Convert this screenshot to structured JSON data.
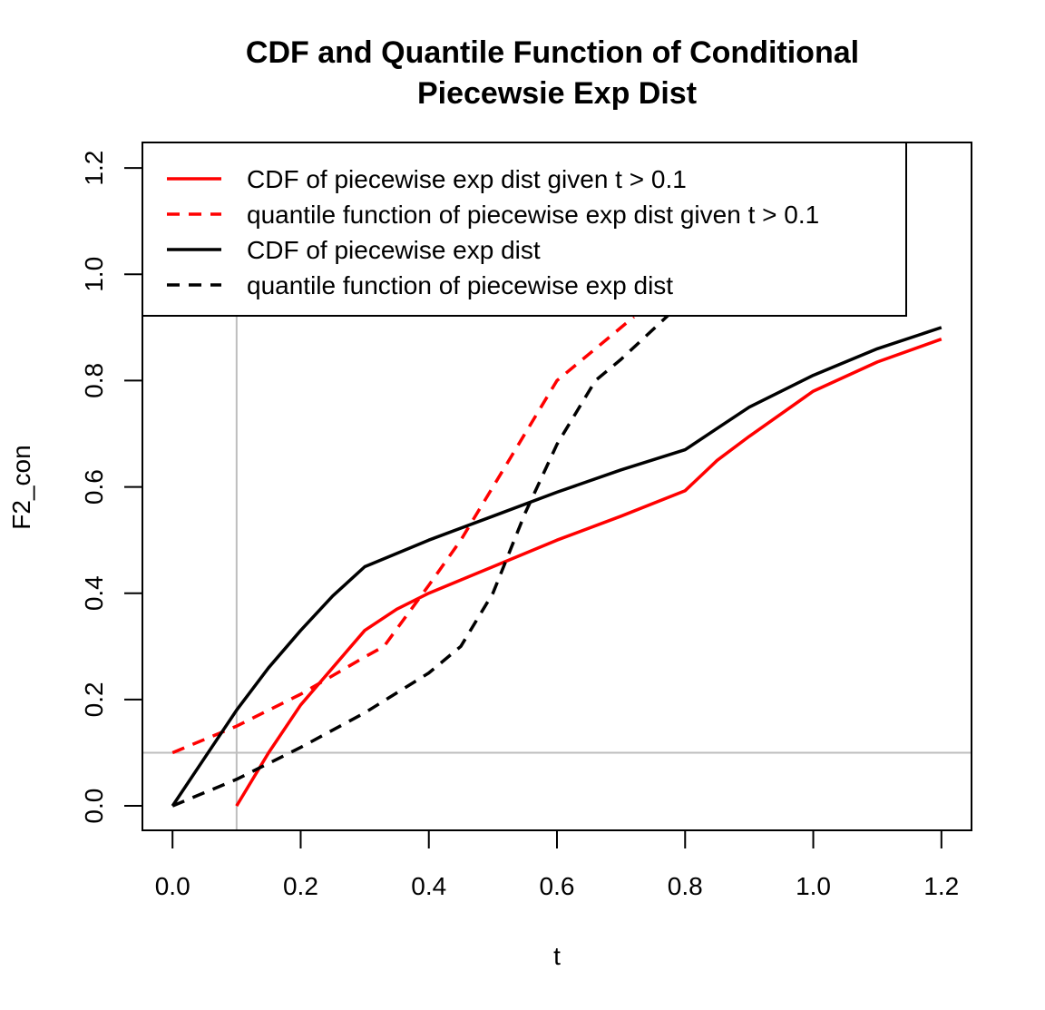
{
  "chart_data": {
    "type": "line",
    "title_lines": [
      "CDF and Quantile Function of Conditional",
      "Piecewsie Exp Dist"
    ],
    "xlabel": "t",
    "ylabel": "F2_con",
    "xlim": [
      -0.047,
      1.247
    ],
    "ylim": [
      -0.046,
      1.248
    ],
    "xticks": [
      "0.0",
      "0.2",
      "0.4",
      "0.6",
      "0.8",
      "1.0",
      "1.2"
    ],
    "yticks": [
      "0.0",
      "0.2",
      "0.4",
      "0.6",
      "0.8",
      "1.0",
      "1.2"
    ],
    "grid": false,
    "reference_lines": {
      "vertical_x": 0.1,
      "horizontal_y": 0.1,
      "color": "#bebebe"
    },
    "legend_position": "top-left",
    "series": [
      {
        "name": "CDF of piecewise exp dist given t > 0.1",
        "color": "#ff0000",
        "dash": "solid",
        "x": [
          0.1,
          0.15,
          0.2,
          0.3,
          0.35,
          0.4,
          0.45,
          0.5,
          0.6,
          0.7,
          0.8,
          0.85,
          0.9,
          1.0,
          1.1,
          1.2
        ],
        "y": [
          0.0,
          0.1,
          0.19,
          0.33,
          0.37,
          0.4,
          0.425,
          0.45,
          0.5,
          0.545,
          0.593,
          0.65,
          0.695,
          0.78,
          0.835,
          0.878
        ]
      },
      {
        "name": "quantile function of piecewise exp dist given t > 0.1",
        "color": "#ff0000",
        "dash": "dashed",
        "x": [
          0.0,
          0.1,
          0.2,
          0.3,
          0.33,
          0.4,
          0.45,
          0.5,
          0.55,
          0.6,
          0.66,
          0.7,
          0.72
        ],
        "y": [
          0.1,
          0.15,
          0.21,
          0.28,
          0.3,
          0.415,
          0.5,
          0.6,
          0.7,
          0.8,
          0.86,
          0.9,
          0.92
        ]
      },
      {
        "name": "CDF of piecewise exp dist",
        "color": "#000000",
        "dash": "solid",
        "x": [
          0.0,
          0.05,
          0.1,
          0.15,
          0.2,
          0.25,
          0.3,
          0.4,
          0.5,
          0.6,
          0.7,
          0.8,
          0.85,
          0.9,
          1.0,
          1.1,
          1.2
        ],
        "y": [
          0.0,
          0.09,
          0.18,
          0.26,
          0.33,
          0.395,
          0.45,
          0.5,
          0.545,
          0.59,
          0.632,
          0.67,
          0.71,
          0.75,
          0.81,
          0.86,
          0.9
        ]
      },
      {
        "name": "quantile function of piecewise exp dist",
        "color": "#000000",
        "dash": "dashed",
        "x": [
          0.0,
          0.1,
          0.2,
          0.3,
          0.4,
          0.45,
          0.5,
          0.55,
          0.6,
          0.66,
          0.7,
          0.78
        ],
        "y": [
          0.0,
          0.05,
          0.11,
          0.175,
          0.25,
          0.3,
          0.4,
          0.55,
          0.68,
          0.8,
          0.84,
          0.93
        ]
      }
    ]
  }
}
